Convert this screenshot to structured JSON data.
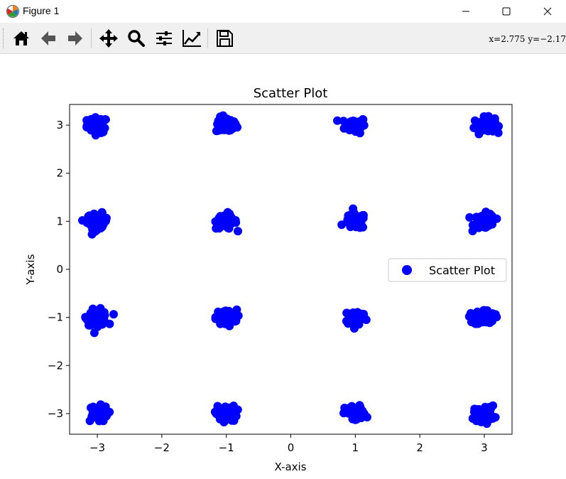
{
  "window": {
    "title": "Figure 1",
    "icons": {
      "app": "matplotlib-icon",
      "minimize": "minimize-icon",
      "maximize": "maximize-icon",
      "close": "close-icon"
    }
  },
  "toolbar": {
    "tools": [
      {
        "name": "home",
        "icon": "home-icon"
      },
      {
        "name": "back",
        "icon": "arrow-left-icon"
      },
      {
        "name": "forward",
        "icon": "arrow-right-icon"
      },
      {
        "name": "pan",
        "icon": "move-icon"
      },
      {
        "name": "zoom",
        "icon": "magnifier-icon"
      },
      {
        "name": "configure-subplots",
        "icon": "sliders-icon"
      },
      {
        "name": "edit-axis",
        "icon": "line-chart-icon"
      },
      {
        "name": "save",
        "icon": "floppy-disk-icon"
      }
    ],
    "coords": "x=2.775  y=−2.17"
  },
  "chart_data": {
    "type": "scatter",
    "title": "Scatter Plot",
    "xlabel": "X-axis",
    "ylabel": "Y-axis",
    "xlim": [
      -3.43,
      3.43
    ],
    "ylim": [
      -3.43,
      3.43
    ],
    "xticks": [
      -3,
      -2,
      -1,
      0,
      1,
      2,
      3
    ],
    "yticks": [
      -3,
      -2,
      -1,
      0,
      1,
      2,
      3
    ],
    "xtick_labels": [
      "−3",
      "−2",
      "−1",
      "0",
      "1",
      "2",
      "3"
    ],
    "ytick_labels": [
      "−3",
      "−2",
      "−1",
      "0",
      "1",
      "2",
      "3"
    ],
    "grid": false,
    "legend": {
      "placement": "center-right",
      "entries": [
        "Scatter Plot"
      ]
    },
    "color": "#0000ff",
    "series": [
      {
        "name": "Scatter Plot",
        "cluster_centers": [
          [
            -3,
            3
          ],
          [
            -1,
            3
          ],
          [
            1,
            3
          ],
          [
            3,
            3
          ],
          [
            -3,
            1
          ],
          [
            -1,
            1
          ],
          [
            1,
            1
          ],
          [
            3,
            1
          ],
          [
            -3,
            -1
          ],
          [
            -1,
            -1
          ],
          [
            1,
            -1
          ],
          [
            3,
            -1
          ],
          [
            -3,
            -3
          ],
          [
            -1,
            -3
          ],
          [
            1,
            -3
          ],
          [
            3,
            -3
          ]
        ],
        "cluster_spread": 0.08
      }
    ]
  }
}
